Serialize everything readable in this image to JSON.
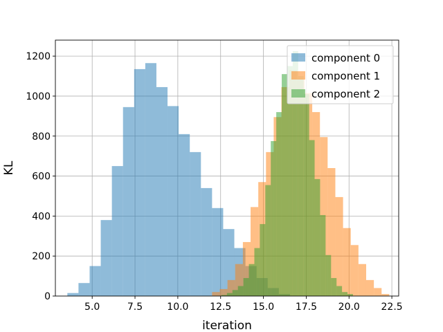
{
  "chart_data": {
    "type": "bar",
    "title": "",
    "xlabel": "iteration",
    "ylabel": "KL",
    "xlim": [
      2.85,
      22.9
    ],
    "ylim": [
      0,
      1280
    ],
    "xticks": [
      5.0,
      7.5,
      10.0,
      12.5,
      15.0,
      17.5,
      20.0,
      22.5
    ],
    "xtick_labels": [
      "5.0",
      "7.5",
      "10.0",
      "12.5",
      "15.0",
      "17.5",
      "20.0",
      "22.5"
    ],
    "yticks": [
      0,
      200,
      400,
      600,
      800,
      1000,
      1200
    ],
    "ytick_labels": [
      "0",
      "200",
      "400",
      "600",
      "800",
      "1000",
      "1200"
    ],
    "grid": true,
    "legend_position": "top-right",
    "series": [
      {
        "name": "component 0",
        "color": "#1f77b4",
        "opacity": 0.5,
        "bin_start": 3.55,
        "bin_width": 0.65,
        "values": [
          15,
          65,
          150,
          380,
          650,
          945,
          1135,
          1165,
          1045,
          950,
          810,
          720,
          540,
          440,
          335,
          240,
          150,
          90,
          40,
          10
        ]
      },
      {
        "name": "component 1",
        "color": "#ff7f0e",
        "opacity": 0.5,
        "bin_start": 12.0,
        "bin_width": 0.45,
        "values": [
          20,
          35,
          80,
          160,
          270,
          445,
          570,
          720,
          895,
          1045,
          1130,
          1085,
          1015,
          920,
          795,
          640,
          495,
          340,
          255,
          160,
          80,
          40,
          10
        ]
      },
      {
        "name": "component 2",
        "color": "#2ca02c",
        "opacity": 0.5,
        "bin_start": 12.55,
        "bin_width": 0.32,
        "values": [
          5,
          15,
          30,
          50,
          90,
          160,
          240,
          360,
          555,
          775,
          920,
          1110,
          1150,
          1225,
          1100,
          1010,
          780,
          585,
          405,
          205,
          90,
          50,
          20,
          10
        ]
      }
    ]
  }
}
